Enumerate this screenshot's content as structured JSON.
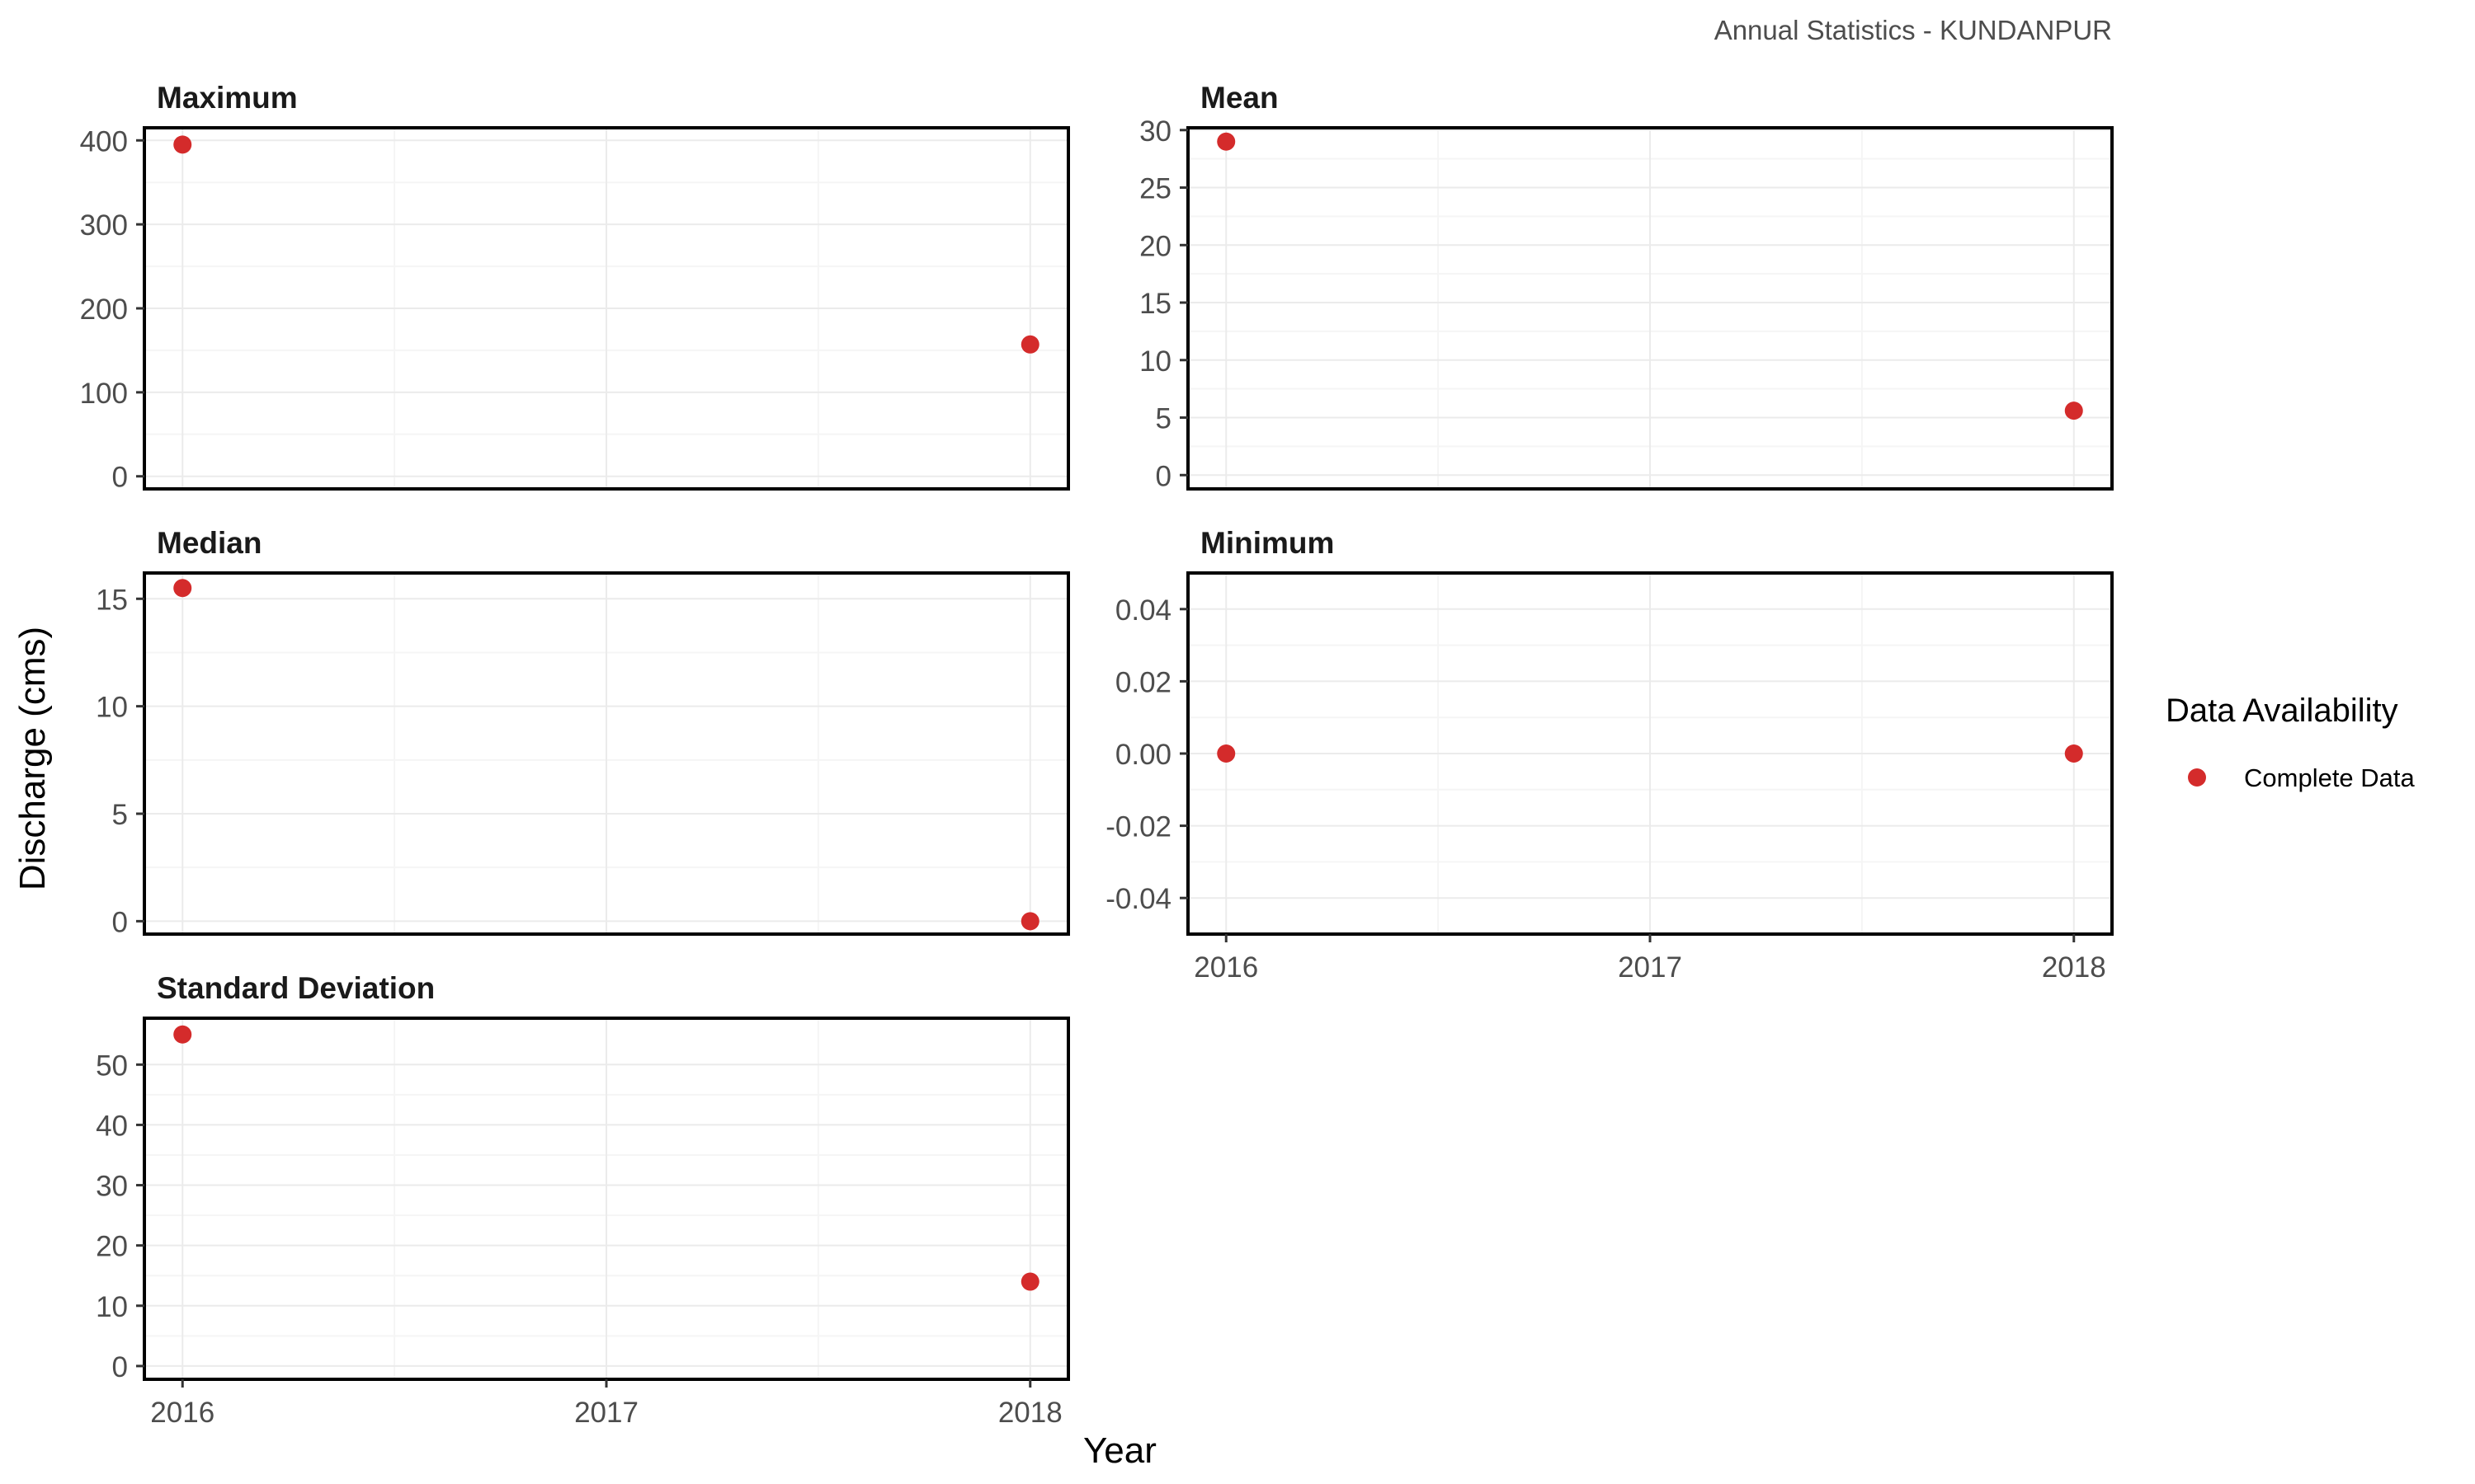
{
  "caption": "Annual Statistics - KUNDANPUR",
  "colors": {
    "point": "#D42B2B",
    "panel_border": "#000000",
    "grid_major": "#EBEBEB",
    "grid_minor": "#F5F5F5",
    "tick_text": "#4D4D4D"
  },
  "legend": {
    "title": "Data Availability",
    "items": [
      {
        "label": "Complete Data",
        "color": "#D42B2B"
      }
    ]
  },
  "chart_data": {
    "type": "scatter",
    "xlabel": "Year",
    "ylabel": "Discharge (cms)",
    "x_ticks": [
      "2016",
      "2017",
      "2018"
    ],
    "xlim": [
      2015.91,
      2018.09
    ],
    "grid": true,
    "legend_position": "right",
    "panels": [
      {
        "title": "Maximum",
        "x": [
          2016,
          2018
        ],
        "y": [
          395,
          157
        ],
        "ylim": [
          -15,
          415
        ],
        "y_ticks": [
          0,
          100,
          200,
          300,
          400
        ]
      },
      {
        "title": "Mean",
        "x": [
          2016,
          2018
        ],
        "y": [
          29,
          5.6
        ],
        "ylim": [
          -1.2,
          30.2
        ],
        "y_ticks": [
          0,
          5,
          10,
          15,
          20,
          25,
          30
        ]
      },
      {
        "title": "Median",
        "x": [
          2016,
          2018
        ],
        "y": [
          15.5,
          0
        ],
        "ylim": [
          -0.6,
          16.2
        ],
        "y_ticks": [
          0,
          5,
          10,
          15
        ]
      },
      {
        "title": "Minimum",
        "x": [
          2016,
          2018
        ],
        "y": [
          0,
          0
        ],
        "ylim": [
          -0.05,
          0.05
        ],
        "y_ticks": [
          "-0.04",
          "-0.02",
          "0.00",
          "0.02",
          "0.04"
        ]
      },
      {
        "title": "Standard Deviation",
        "x": [
          2016,
          2018
        ],
        "y": [
          55,
          14
        ],
        "ylim": [
          -2.2,
          57.7
        ],
        "y_ticks": [
          0,
          10,
          20,
          30,
          40,
          50
        ]
      }
    ]
  }
}
